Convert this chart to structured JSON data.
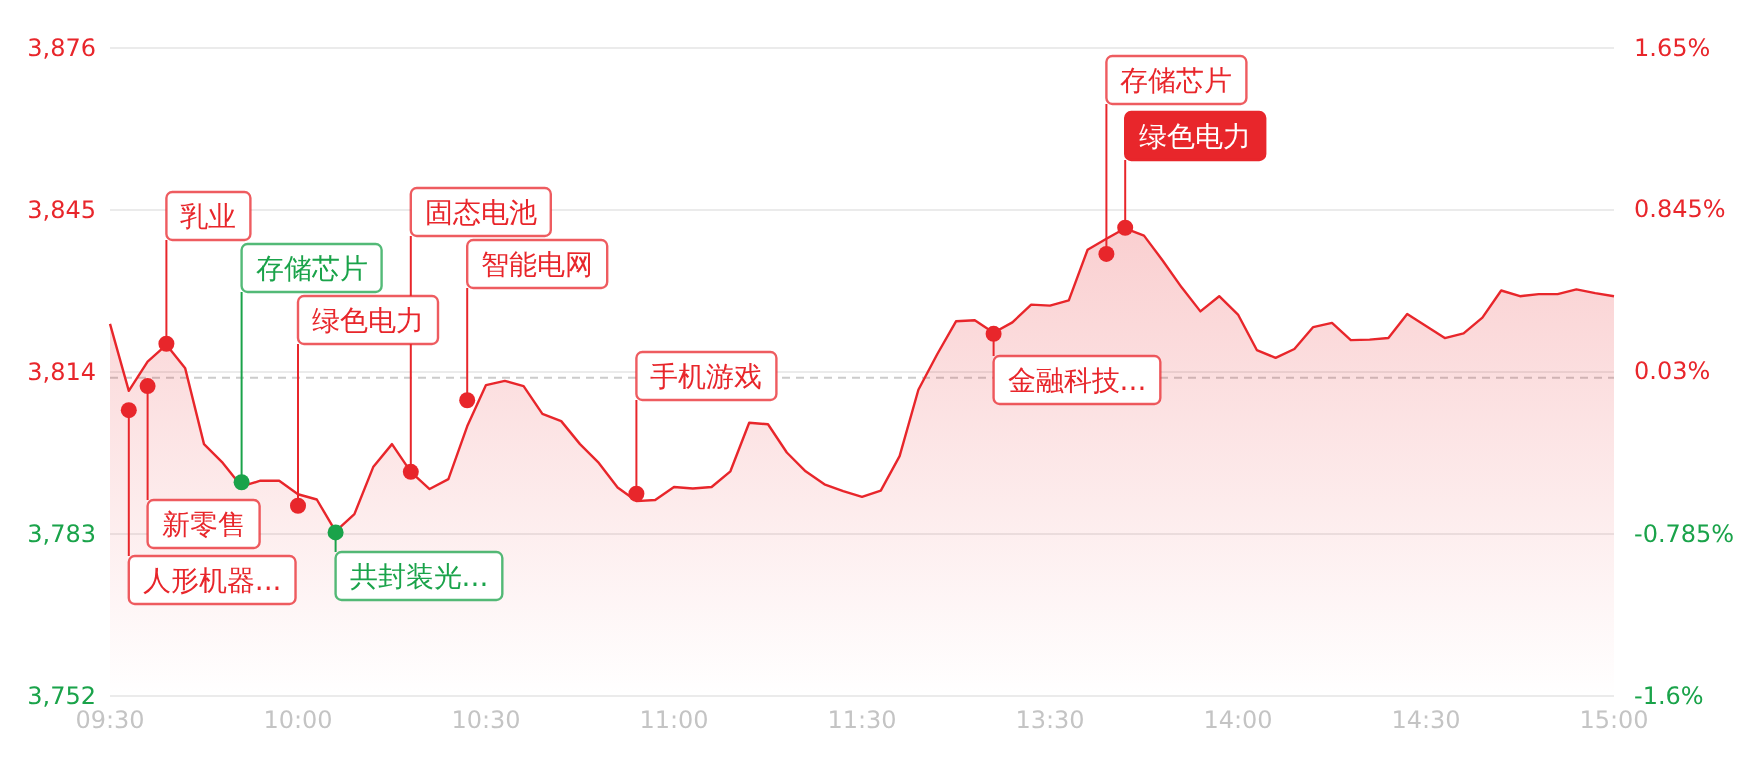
{
  "chart_data": {
    "type": "area",
    "categories": [
      "09:30",
      null,
      null,
      null,
      null,
      null,
      null,
      null,
      null,
      null,
      "10:00",
      null,
      null,
      null,
      null,
      null,
      null,
      null,
      null,
      null,
      "10:30",
      null,
      null,
      null,
      null,
      null,
      null,
      null,
      null,
      null,
      "11:00",
      null,
      null,
      null,
      null,
      null,
      null,
      null,
      null,
      null,
      "11:30",
      null,
      null,
      null,
      null,
      null,
      null,
      null,
      null,
      null,
      "13:30",
      null,
      null,
      null,
      null,
      null,
      null,
      null,
      null,
      null,
      "14:00",
      null,
      null,
      null,
      null,
      null,
      null,
      null,
      null,
      null,
      "14:30",
      null,
      null,
      null,
      null,
      null,
      null,
      null,
      null,
      null,
      "15:00"
    ],
    "ylim": [
      3752,
      3876
    ],
    "yticks": [
      {
        "value": 3752,
        "label": "3,752"
      },
      {
        "value": 3783,
        "label": "3,783"
      },
      {
        "value": 3814,
        "label": "3,814"
      },
      {
        "value": 3845,
        "label": "3,845"
      },
      {
        "value": 3876,
        "label": "3,876"
      }
    ],
    "y2lim": [
      -1.6,
      1.65
    ],
    "y2ticks": [
      {
        "value": -1.6,
        "label": "-1.6%"
      },
      {
        "value": -0.785,
        "label": "-0.785%"
      },
      {
        "value": 0.03,
        "label": "0.03%"
      },
      {
        "value": 0.845,
        "label": "0.845%"
      },
      {
        "value": 1.65,
        "label": "1.65%"
      }
    ],
    "grid": "y",
    "ref_lines": [
      {
        "axis": "y",
        "value": 3812.9,
        "line_style": "dashed",
        "color": "#cccccc"
      }
    ],
    "series": [
      {
        "color": "#e8262b",
        "values": [
          3823.2,
          3810.4,
          3816.0,
          3819.2,
          3814.7,
          3800.2,
          3796.6,
          3792.1,
          3793.2,
          3793.2,
          3790.6,
          3789.6,
          3783.5,
          3786.8,
          3795.8,
          3800.2,
          3794.9,
          3791.6,
          3793.5,
          3803.6,
          3811.5,
          3812.3,
          3811.3,
          3806.0,
          3804.6,
          3800.2,
          3796.6,
          3791.9,
          3789.3,
          3789.5,
          3792.0,
          3791.7,
          3792.0,
          3795.0,
          3804.3,
          3804.0,
          3798.6,
          3795.0,
          3792.5,
          3791.2,
          3790.1,
          3791.3,
          3797.9,
          3810.6,
          3817.4,
          3823.7,
          3823.9,
          3821.5,
          3823.5,
          3826.9,
          3826.7,
          3827.7,
          3837.4,
          3839.5,
          3841.5,
          3840.1,
          3835.3,
          3830.2,
          3825.6,
          3828.5,
          3825.0,
          3818.2,
          3816.7,
          3818.4,
          3822.6,
          3823.4,
          3820.1,
          3820.2,
          3820.5,
          3825.1,
          3822.8,
          3820.5,
          3821.4,
          3824.4,
          3829.6,
          3828.5,
          3828.9,
          3828.9,
          3829.8,
          3829.1,
          3828.5
        ]
      },
      {
        "type": "scatter",
        "marker": "circle",
        "values": [
          null,
          3806.7,
          3811.3,
          3819.4,
          null,
          null,
          null,
          3792.9,
          null,
          null,
          3788.4,
          null,
          3783.3,
          null,
          null,
          null,
          3794.9,
          null,
          null,
          3808.6,
          null,
          null,
          null,
          null,
          null,
          null,
          null,
          null,
          3790.7,
          null,
          null,
          null,
          null,
          null,
          null,
          null,
          null,
          null,
          null,
          null,
          null,
          null,
          null,
          null,
          null,
          null,
          null,
          3821.3,
          null,
          null,
          null,
          null,
          null,
          3836.6,
          3841.6,
          null,
          null,
          null,
          null,
          null,
          null,
          null,
          null,
          null,
          null,
          null,
          null,
          null,
          null,
          null,
          null,
          null,
          null,
          null,
          null,
          null,
          null,
          null,
          null,
          null,
          null
        ],
        "value_labels": [
          null,
          "人形机器...",
          "新零售",
          "乳业",
          null,
          null,
          null,
          "存储芯片",
          null,
          null,
          "绿色电力",
          null,
          "共封装光...",
          null,
          null,
          null,
          "固态电池",
          null,
          null,
          "智能电网",
          null,
          null,
          null,
          null,
          null,
          null,
          null,
          null,
          "手机游戏",
          null,
          null,
          null,
          null,
          null,
          null,
          null,
          null,
          null,
          null,
          null,
          null,
          null,
          null,
          null,
          null,
          null,
          null,
          "金融科技...",
          null,
          null,
          null,
          null,
          null,
          "存储芯片",
          "绿色电力",
          null,
          null,
          null,
          null,
          null,
          null,
          null,
          null,
          null,
          null,
          null,
          null,
          null,
          null,
          null,
          null,
          null,
          null,
          null,
          null,
          null,
          null,
          null,
          null,
          null,
          null
        ],
        "colors": [
          null,
          "#e8262b",
          "#e8262b",
          "#e8262b",
          null,
          null,
          null,
          "#1aa34a",
          null,
          null,
          "#e8262b",
          null,
          "#1aa34a",
          null,
          null,
          null,
          "#e8262b",
          null,
          null,
          "#e8262b",
          null,
          null,
          null,
          null,
          null,
          null,
          null,
          null,
          "#e8262b",
          null,
          null,
          null,
          null,
          null,
          null,
          null,
          null,
          null,
          null,
          null,
          null,
          null,
          null,
          null,
          null,
          null,
          null,
          "#e8262b",
          null,
          null,
          null,
          null,
          null,
          "#e8262b",
          "#e8262b",
          null,
          null,
          null,
          null,
          null,
          null,
          null,
          null,
          null,
          null,
          null,
          null,
          null,
          null,
          null,
          null,
          null,
          null,
          null,
          null,
          null,
          null,
          null,
          null,
          null,
          null
        ]
      }
    ]
  }
}
